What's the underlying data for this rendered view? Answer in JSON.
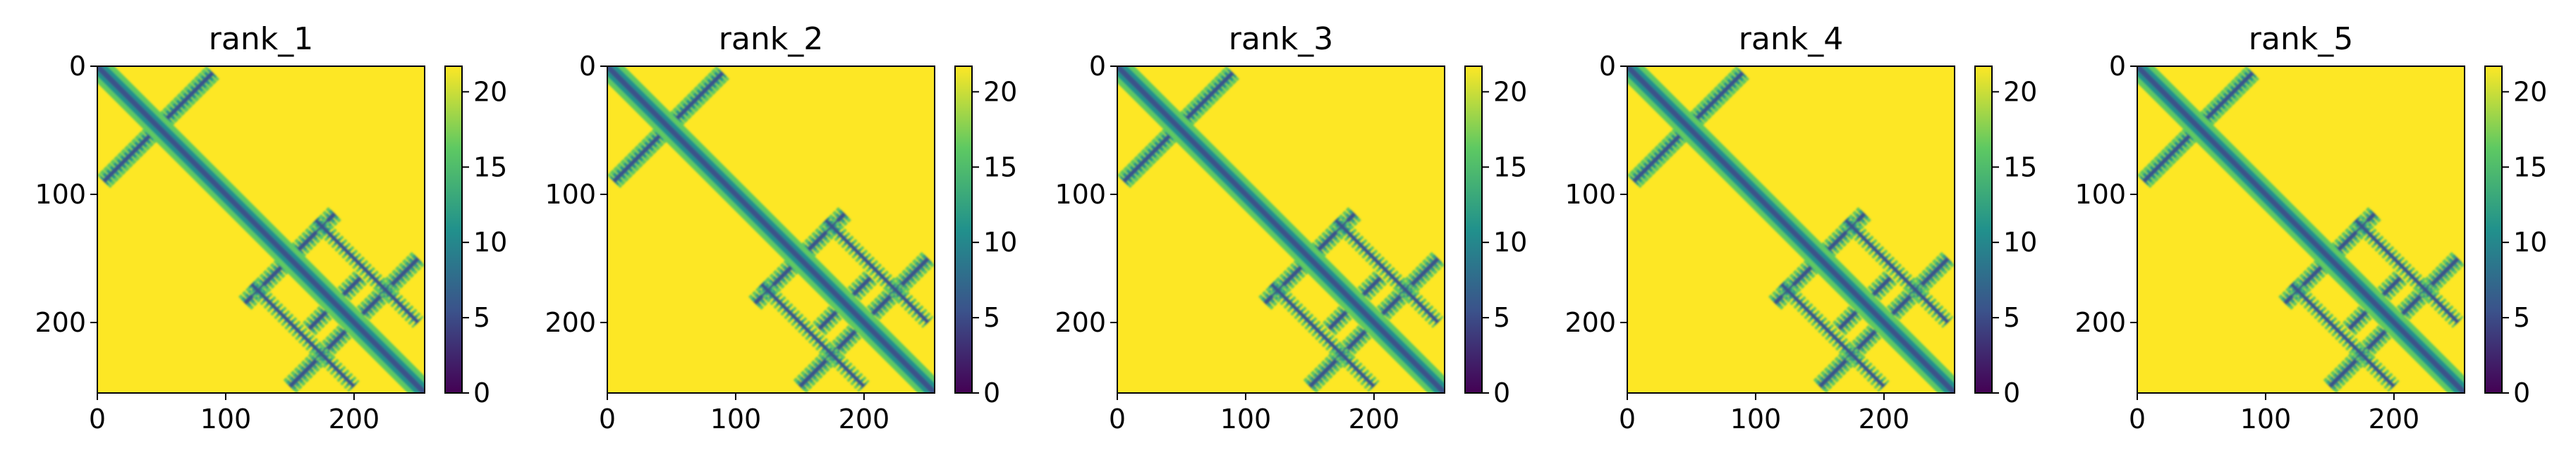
{
  "chart_data": [
    {
      "type": "heatmap",
      "title": "rank_1",
      "xlim": [
        0,
        255
      ],
      "ylim": [
        0,
        255
      ],
      "y_inverted": true,
      "x_ticks": [
        0,
        100,
        200
      ],
      "y_ticks": [
        0,
        100,
        200
      ],
      "colorbar": {
        "min": 0,
        "max": 21.7,
        "ticks": [
          0,
          5,
          10,
          15,
          20
        ],
        "colormap": "viridis"
      },
      "features": {
        "main_diagonal": [
          [
            0,
            0
          ],
          [
            255,
            255
          ]
        ],
        "antidiagonal_strands": [
          {
            "from": [
              5,
              90
            ],
            "to": [
              90,
              5
            ]
          },
          {
            "from": [
              115,
              185
            ],
            "to": [
              185,
              115
            ]
          },
          {
            "from": [
              150,
              250
            ],
            "to": [
              250,
              150
            ]
          },
          {
            "from": [
              165,
              205
            ],
            "to": [
              205,
              165
            ]
          }
        ],
        "parallel_strands": [
          {
            "from": [
              120,
              170
            ],
            "to": [
              200,
              250
            ]
          },
          {
            "from": [
              170,
              120
            ],
            "to": [
              250,
              200
            ]
          }
        ]
      }
    },
    {
      "type": "heatmap",
      "title": "rank_2",
      "xlim": [
        0,
        255
      ],
      "ylim": [
        0,
        255
      ],
      "y_inverted": true,
      "x_ticks": [
        0,
        100,
        200
      ],
      "y_ticks": [
        0,
        100,
        200
      ],
      "colorbar": {
        "min": 0,
        "max": 21.7,
        "ticks": [
          0,
          5,
          10,
          15,
          20
        ],
        "colormap": "viridis"
      },
      "features": {
        "main_diagonal": [
          [
            0,
            0
          ],
          [
            255,
            255
          ]
        ],
        "antidiagonal_strands": [
          {
            "from": [
              5,
              90
            ],
            "to": [
              90,
              5
            ]
          },
          {
            "from": [
              115,
              185
            ],
            "to": [
              185,
              115
            ]
          },
          {
            "from": [
              150,
              250
            ],
            "to": [
              250,
              150
            ]
          },
          {
            "from": [
              165,
              205
            ],
            "to": [
              205,
              165
            ]
          }
        ],
        "parallel_strands": [
          {
            "from": [
              120,
              170
            ],
            "to": [
              200,
              250
            ]
          },
          {
            "from": [
              170,
              120
            ],
            "to": [
              250,
              200
            ]
          }
        ]
      }
    },
    {
      "type": "heatmap",
      "title": "rank_3",
      "xlim": [
        0,
        255
      ],
      "ylim": [
        0,
        255
      ],
      "y_inverted": true,
      "x_ticks": [
        0,
        100,
        200
      ],
      "y_ticks": [
        0,
        100,
        200
      ],
      "colorbar": {
        "min": 0,
        "max": 21.7,
        "ticks": [
          0,
          5,
          10,
          15,
          20
        ],
        "colormap": "viridis"
      },
      "features": {
        "main_diagonal": [
          [
            0,
            0
          ],
          [
            255,
            255
          ]
        ],
        "antidiagonal_strands": [
          {
            "from": [
              5,
              90
            ],
            "to": [
              90,
              5
            ]
          },
          {
            "from": [
              115,
              185
            ],
            "to": [
              185,
              115
            ]
          },
          {
            "from": [
              150,
              250
            ],
            "to": [
              250,
              150
            ]
          },
          {
            "from": [
              165,
              205
            ],
            "to": [
              205,
              165
            ]
          }
        ],
        "parallel_strands": [
          {
            "from": [
              120,
              170
            ],
            "to": [
              200,
              250
            ]
          },
          {
            "from": [
              170,
              120
            ],
            "to": [
              250,
              200
            ]
          }
        ]
      }
    },
    {
      "type": "heatmap",
      "title": "rank_4",
      "xlim": [
        0,
        255
      ],
      "ylim": [
        0,
        255
      ],
      "y_inverted": true,
      "x_ticks": [
        0,
        100,
        200
      ],
      "y_ticks": [
        0,
        100,
        200
      ],
      "colorbar": {
        "min": 0,
        "max": 21.7,
        "ticks": [
          0,
          5,
          10,
          15,
          20
        ],
        "colormap": "viridis"
      },
      "features": {
        "main_diagonal": [
          [
            0,
            0
          ],
          [
            255,
            255
          ]
        ],
        "antidiagonal_strands": [
          {
            "from": [
              5,
              90
            ],
            "to": [
              90,
              5
            ]
          },
          {
            "from": [
              115,
              185
            ],
            "to": [
              185,
              115
            ]
          },
          {
            "from": [
              150,
              250
            ],
            "to": [
              250,
              150
            ]
          },
          {
            "from": [
              165,
              205
            ],
            "to": [
              205,
              165
            ]
          }
        ],
        "parallel_strands": [
          {
            "from": [
              120,
              170
            ],
            "to": [
              200,
              250
            ]
          },
          {
            "from": [
              170,
              120
            ],
            "to": [
              250,
              200
            ]
          }
        ]
      }
    },
    {
      "type": "heatmap",
      "title": "rank_5",
      "xlim": [
        0,
        255
      ],
      "ylim": [
        0,
        255
      ],
      "y_inverted": true,
      "x_ticks": [
        0,
        100,
        200
      ],
      "y_ticks": [
        0,
        100,
        200
      ],
      "colorbar": {
        "min": 0,
        "max": 21.7,
        "ticks": [
          0,
          5,
          10,
          15,
          20
        ],
        "colormap": "viridis"
      },
      "features": {
        "main_diagonal": [
          [
            0,
            0
          ],
          [
            255,
            255
          ]
        ],
        "antidiagonal_strands": [
          {
            "from": [
              5,
              90
            ],
            "to": [
              90,
              5
            ]
          },
          {
            "from": [
              115,
              185
            ],
            "to": [
              185,
              115
            ]
          },
          {
            "from": [
              150,
              250
            ],
            "to": [
              250,
              150
            ]
          },
          {
            "from": [
              165,
              205
            ],
            "to": [
              205,
              165
            ]
          }
        ],
        "parallel_strands": [
          {
            "from": [
              120,
              170
            ],
            "to": [
              200,
              250
            ]
          },
          {
            "from": [
              170,
              120
            ],
            "to": [
              250,
              200
            ]
          }
        ]
      }
    }
  ],
  "colors": {
    "background_max": "#fde725",
    "viridis_stops": [
      "#440154",
      "#3b528b",
      "#21918c",
      "#5ec962",
      "#fde725"
    ],
    "frame": "#000000"
  }
}
